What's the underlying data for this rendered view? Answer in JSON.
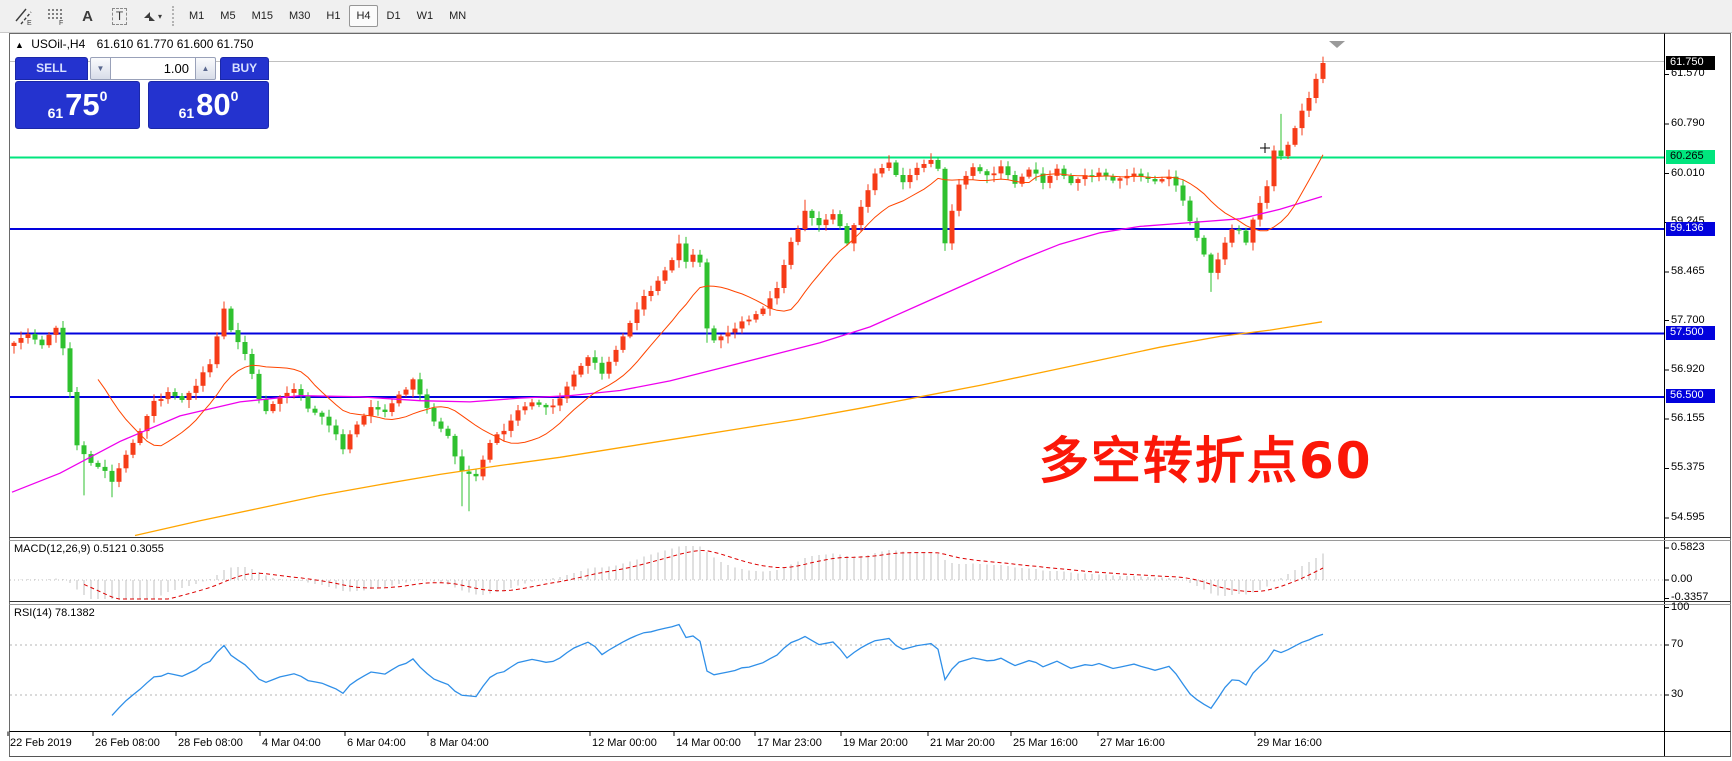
{
  "toolbar": {
    "tools": [
      {
        "name": "equidistant-channel-icon",
        "glyph": "E"
      },
      {
        "name": "fibonacci-retracement-icon",
        "glyph": "F"
      },
      {
        "name": "text-icon",
        "glyph": "A"
      },
      {
        "name": "text-label-icon",
        "glyph": "T"
      },
      {
        "name": "arrows-icon",
        "glyph": "▾"
      }
    ],
    "timeframes": [
      {
        "label": "M1"
      },
      {
        "label": "M5"
      },
      {
        "label": "M15"
      },
      {
        "label": "M30"
      },
      {
        "label": "H1"
      },
      {
        "label": "H4"
      },
      {
        "label": "D1"
      },
      {
        "label": "W1"
      },
      {
        "label": "MN"
      }
    ],
    "active_timeframe": "H4"
  },
  "chart_header": {
    "collapse_glyph": "▲",
    "symbol": "USOil-,H4",
    "ohlc": "61.610 61.770 61.600 61.750"
  },
  "trade_panel": {
    "sell_label": "SELL",
    "buy_label": "BUY",
    "volume": "1.00",
    "stepper_down_glyph": "▼",
    "stepper_up_glyph": "▲",
    "sell_price": {
      "prefix": "61",
      "big": "75",
      "sup": "0"
    },
    "buy_price": {
      "prefix": "61",
      "big": "80",
      "sup": "0"
    }
  },
  "price_axis": {
    "ticks": [
      {
        "label": "61.570",
        "price": 61.57
      },
      {
        "label": "60.790",
        "price": 60.79
      },
      {
        "label": "60.010",
        "price": 60.01
      },
      {
        "label": "59.245",
        "price": 59.245
      },
      {
        "label": "58.465",
        "price": 58.465
      },
      {
        "label": "57.700",
        "price": 57.7
      },
      {
        "label": "56.920",
        "price": 56.92
      },
      {
        "label": "56.155",
        "price": 56.155
      },
      {
        "label": "55.375",
        "price": 55.375
      },
      {
        "label": "54.595",
        "price": 54.595
      }
    ],
    "badges": [
      {
        "label": "61.750",
        "price": 61.75,
        "bg": "#000000",
        "fg": "#ffffff"
      },
      {
        "label": "60.265",
        "price": 60.265,
        "bg": "#00e57e",
        "fg": "#000000"
      },
      {
        "label": "59.136",
        "price": 59.136,
        "bg": "#0202dd",
        "fg": "#ffffff"
      },
      {
        "label": "57.500",
        "price": 57.5,
        "bg": "#0202dd",
        "fg": "#ffffff"
      },
      {
        "label": "56.500",
        "price": 56.5,
        "bg": "#0202dd",
        "fg": "#ffffff"
      }
    ]
  },
  "hlines": [
    {
      "price": 61.77,
      "color": "#c0c0c0",
      "width": 1,
      "name": "ask-line"
    },
    {
      "price": 60.265,
      "color": "#00e57e",
      "width": 2,
      "name": "resistance-line-60265"
    },
    {
      "price": 59.136,
      "color": "#0202dd",
      "width": 2,
      "name": "support-line-59136"
    },
    {
      "price": 57.5,
      "color": "#0202dd",
      "width": 2,
      "name": "support-line-57500"
    },
    {
      "price": 56.5,
      "color": "#0202dd",
      "width": 2,
      "name": "support-line-56500"
    }
  ],
  "annotation": {
    "text": "多空转折点60",
    "color": "#fb1708"
  },
  "macd": {
    "label": "MACD(12,26,9)",
    "value_main": "0.5121",
    "value_signal": "0.3055",
    "scale": [
      {
        "label": "0.5823",
        "value": 0.5823
      },
      {
        "label": "0.00",
        "value": 0
      },
      {
        "label": "-0.3357",
        "value": -0.3357
      }
    ]
  },
  "rsi": {
    "label": "RSI(14)",
    "value": "78.1382",
    "scale": [
      {
        "label": "100",
        "value": 100
      },
      {
        "label": "70",
        "value": 70
      },
      {
        "label": "30",
        "value": 30
      }
    ],
    "levels": [
      70,
      30
    ]
  },
  "time_axis": {
    "labels": [
      {
        "text": "22 Feb 2019",
        "x": 10
      },
      {
        "text": "26 Feb 08:00",
        "x": 95
      },
      {
        "text": "28 Feb 08:00",
        "x": 178
      },
      {
        "text": "4 Mar 04:00",
        "x": 262
      },
      {
        "text": "6 Mar 04:00",
        "x": 347
      },
      {
        "text": "8 Mar 04:00",
        "x": 430
      },
      {
        "text": "12 Mar 00:00",
        "x": 592
      },
      {
        "text": "14 Mar 00:00",
        "x": 676
      },
      {
        "text": "17 Mar 23:00",
        "x": 757
      },
      {
        "text": "19 Mar 20:00",
        "x": 843
      },
      {
        "text": "21 Mar 20:00",
        "x": 930
      },
      {
        "text": "25 Mar 16:00",
        "x": 1013
      },
      {
        "text": "27 Mar 16:00",
        "x": 1100
      },
      {
        "text": "29 Mar 16:00",
        "x": 1257
      }
    ]
  },
  "chart_data": {
    "type": "candlestick",
    "symbol": "USOil-",
    "timeframe": "H4",
    "title": "USOil-,H4",
    "last_bar": {
      "open": 61.61,
      "high": 61.77,
      "low": 61.6,
      "close": 61.75
    },
    "bid": 61.75,
    "sell_quote": 61.75,
    "buy_quote": 61.8,
    "bars": 188,
    "first_open": 57.3,
    "up_color": "#f63c18",
    "down_color": "#2fc12f",
    "x_range": [
      "22 Feb 2019",
      "29 Mar 16:00"
    ],
    "y_axis": {
      "min": 54.4,
      "max": 61.9
    },
    "levels": [
      60.265,
      59.136,
      57.5,
      56.5
    ],
    "close_waypoints": [
      [
        0,
        57.35
      ],
      [
        2,
        57.5
      ],
      [
        4,
        57.3
      ],
      [
        5,
        57.45
      ],
      [
        6,
        57.55
      ],
      [
        7,
        57.3
      ],
      [
        8,
        56.6
      ],
      [
        9,
        55.75
      ],
      [
        11,
        55.45
      ],
      [
        13,
        55.3
      ],
      [
        14,
        55.2
      ],
      [
        16,
        55.6
      ],
      [
        18,
        55.95
      ],
      [
        20,
        56.4
      ],
      [
        22,
        56.6
      ],
      [
        24,
        56.45
      ],
      [
        26,
        56.65
      ],
      [
        28,
        57.05
      ],
      [
        30,
        57.9
      ],
      [
        31,
        57.55
      ],
      [
        33,
        57.15
      ],
      [
        35,
        56.5
      ],
      [
        36,
        56.3
      ],
      [
        38,
        56.5
      ],
      [
        40,
        56.6
      ],
      [
        42,
        56.35
      ],
      [
        44,
        56.2
      ],
      [
        46,
        55.9
      ],
      [
        47,
        55.65
      ],
      [
        49,
        56.1
      ],
      [
        51,
        56.35
      ],
      [
        53,
        56.25
      ],
      [
        55,
        56.5
      ],
      [
        57,
        56.8
      ],
      [
        58,
        56.55
      ],
      [
        60,
        56.1
      ],
      [
        62,
        55.85
      ],
      [
        64,
        55.35
      ],
      [
        66,
        55.25
      ],
      [
        68,
        55.75
      ],
      [
        70,
        56.0
      ],
      [
        72,
        56.3
      ],
      [
        74,
        56.4
      ],
      [
        76,
        56.3
      ],
      [
        78,
        56.5
      ],
      [
        80,
        56.85
      ],
      [
        82,
        57.1
      ],
      [
        84,
        56.9
      ],
      [
        86,
        57.25
      ],
      [
        88,
        57.65
      ],
      [
        90,
        58.05
      ],
      [
        92,
        58.35
      ],
      [
        94,
        58.65
      ],
      [
        95,
        58.9
      ],
      [
        96,
        58.6
      ],
      [
        97,
        58.7
      ],
      [
        98,
        58.65
      ],
      [
        99,
        57.6
      ],
      [
        100,
        57.4
      ],
      [
        101,
        57.45
      ],
      [
        103,
        57.55
      ],
      [
        105,
        57.75
      ],
      [
        107,
        57.9
      ],
      [
        109,
        58.2
      ],
      [
        111,
        58.9
      ],
      [
        113,
        59.45
      ],
      [
        115,
        59.2
      ],
      [
        117,
        59.35
      ],
      [
        119,
        58.95
      ],
      [
        121,
        59.5
      ],
      [
        123,
        60.0
      ],
      [
        125,
        60.15
      ],
      [
        127,
        59.9
      ],
      [
        129,
        60.1
      ],
      [
        131,
        60.2
      ],
      [
        132,
        60.05
      ],
      [
        133,
        58.95
      ],
      [
        134,
        59.45
      ],
      [
        135,
        59.85
      ],
      [
        137,
        60.1
      ],
      [
        139,
        59.95
      ],
      [
        141,
        60.15
      ],
      [
        143,
        59.85
      ],
      [
        145,
        60.05
      ],
      [
        147,
        59.9
      ],
      [
        149,
        60.1
      ],
      [
        151,
        59.85
      ],
      [
        153,
        59.95
      ],
      [
        155,
        60.05
      ],
      [
        157,
        59.9
      ],
      [
        159,
        59.95
      ],
      [
        161,
        60.0
      ],
      [
        163,
        59.9
      ],
      [
        165,
        59.95
      ],
      [
        166,
        59.8
      ],
      [
        168,
        59.3
      ],
      [
        170,
        58.75
      ],
      [
        171,
        58.45
      ],
      [
        172,
        58.65
      ],
      [
        173,
        58.9
      ],
      [
        174,
        59.1
      ],
      [
        175,
        59.15
      ],
      [
        176,
        58.95
      ],
      [
        177,
        59.3
      ],
      [
        178,
        59.55
      ],
      [
        179,
        59.8
      ],
      [
        180,
        60.35
      ],
      [
        181,
        60.25
      ],
      [
        182,
        60.5
      ],
      [
        183,
        60.75
      ],
      [
        184,
        61.0
      ],
      [
        185,
        61.2
      ],
      [
        186,
        61.5
      ],
      [
        187,
        61.75
      ]
    ],
    "high_overrides": {
      "30": 58.0,
      "95": 59.05,
      "113": 59.6,
      "125": 60.3,
      "131": 60.33,
      "181": 60.95,
      "187": 61.85
    },
    "low_overrides": {
      "10": 54.95,
      "14": 54.92,
      "64": 54.78,
      "65": 54.7,
      "99": 57.35,
      "171": 58.15
    },
    "ma_fast": {
      "period": 13,
      "color": "#ff4500"
    },
    "ma_mid_color": "#ee00ee",
    "ma_mid_points": [
      [
        12,
        55.0
      ],
      [
        60,
        55.3
      ],
      [
        120,
        55.8
      ],
      [
        180,
        56.2
      ],
      [
        240,
        56.42
      ],
      [
        300,
        56.52
      ],
      [
        360,
        56.5
      ],
      [
        420,
        56.44
      ],
      [
        470,
        56.42
      ],
      [
        520,
        56.48
      ],
      [
        570,
        56.52
      ],
      [
        620,
        56.6
      ],
      [
        670,
        56.75
      ],
      [
        720,
        56.95
      ],
      [
        770,
        57.15
      ],
      [
        820,
        57.35
      ],
      [
        870,
        57.6
      ],
      [
        920,
        57.95
      ],
      [
        970,
        58.3
      ],
      [
        1020,
        58.65
      ],
      [
        1060,
        58.9
      ],
      [
        1100,
        59.08
      ],
      [
        1140,
        59.18
      ],
      [
        1190,
        59.24
      ],
      [
        1240,
        59.3
      ],
      [
        1280,
        59.45
      ],
      [
        1322,
        59.65
      ]
    ],
    "ma_slow_color": "#ffa500",
    "ma_slow_points": [
      [
        135,
        54.32
      ],
      [
        200,
        54.55
      ],
      [
        260,
        54.75
      ],
      [
        320,
        54.95
      ],
      [
        380,
        55.12
      ],
      [
        440,
        55.28
      ],
      [
        500,
        55.42
      ],
      [
        560,
        55.55
      ],
      [
        620,
        55.7
      ],
      [
        680,
        55.85
      ],
      [
        740,
        56.0
      ],
      [
        800,
        56.15
      ],
      [
        860,
        56.32
      ],
      [
        920,
        56.5
      ],
      [
        980,
        56.68
      ],
      [
        1040,
        56.88
      ],
      [
        1100,
        57.08
      ],
      [
        1160,
        57.28
      ],
      [
        1220,
        57.45
      ],
      [
        1270,
        57.55
      ],
      [
        1322,
        57.68
      ]
    ],
    "macd": {
      "fast": 12,
      "slow": 26,
      "signal": 9,
      "current_main": 0.5121,
      "current_signal": 0.3055
    },
    "rsi": {
      "period": 14,
      "current": 78.1382
    }
  }
}
